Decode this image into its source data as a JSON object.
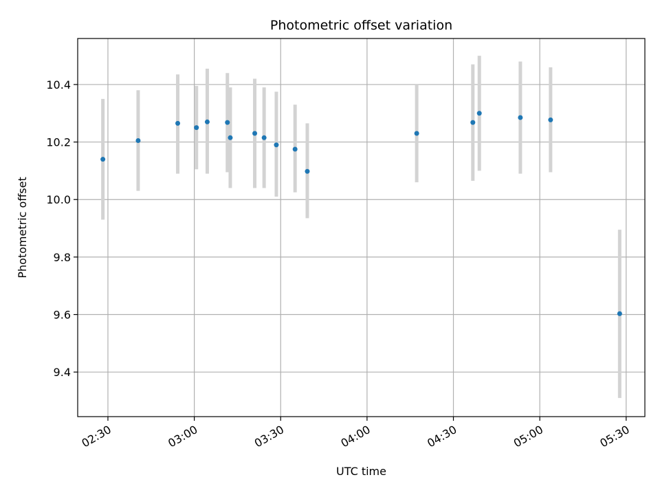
{
  "chart_data": {
    "type": "scatter",
    "title": "Photometric offset variation",
    "xlabel": "UTC time",
    "ylabel": "Photometric offset",
    "x_ticks": [
      "02:30",
      "03:00",
      "03:30",
      "04:00",
      "04:30",
      "05:00",
      "05:30"
    ],
    "y_ticks": [
      "9.4",
      "9.6",
      "9.8",
      "10.0",
      "10.2",
      "10.4"
    ],
    "xlim": [
      "02:19:30",
      "05:36:30"
    ],
    "ylim": [
      9.245,
      10.56
    ],
    "grid": true,
    "legend": "none",
    "colors": {
      "point": "#1f77b4",
      "errorbar": "#d3d3d3",
      "grid": "#b0b0b0"
    },
    "series": [
      {
        "points": [
          {
            "x": "02:28:15",
            "y": 10.14,
            "yerr_low": 9.93,
            "yerr_high": 10.35
          },
          {
            "x": "02:40:30",
            "y": 10.205,
            "yerr_low": 10.03,
            "yerr_high": 10.38
          },
          {
            "x": "02:54:15",
            "y": 10.265,
            "yerr_low": 10.09,
            "yerr_high": 10.435
          },
          {
            "x": "03:00:45",
            "y": 10.25,
            "yerr_low": 10.105,
            "yerr_high": 10.395
          },
          {
            "x": "03:04:30",
            "y": 10.27,
            "yerr_low": 10.09,
            "yerr_high": 10.455
          },
          {
            "x": "03:11:30",
            "y": 10.268,
            "yerr_low": 10.095,
            "yerr_high": 10.44
          },
          {
            "x": "03:12:30",
            "y": 10.215,
            "yerr_low": 10.04,
            "yerr_high": 10.39
          },
          {
            "x": "03:21:00",
            "y": 10.23,
            "yerr_low": 10.04,
            "yerr_high": 10.42
          },
          {
            "x": "03:24:15",
            "y": 10.215,
            "yerr_low": 10.04,
            "yerr_high": 10.39
          },
          {
            "x": "03:28:30",
            "y": 10.19,
            "yerr_low": 10.01,
            "yerr_high": 10.375
          },
          {
            "x": "03:35:00",
            "y": 10.175,
            "yerr_low": 10.025,
            "yerr_high": 10.33
          },
          {
            "x": "03:39:15",
            "y": 10.098,
            "yerr_low": 9.935,
            "yerr_high": 10.265
          },
          {
            "x": "04:17:15",
            "y": 10.23,
            "yerr_low": 10.06,
            "yerr_high": 10.4
          },
          {
            "x": "04:36:45",
            "y": 10.268,
            "yerr_low": 10.065,
            "yerr_high": 10.47
          },
          {
            "x": "04:39:00",
            "y": 10.3,
            "yerr_low": 10.1,
            "yerr_high": 10.5
          },
          {
            "x": "04:53:15",
            "y": 10.285,
            "yerr_low": 10.09,
            "yerr_high": 10.48
          },
          {
            "x": "05:03:45",
            "y": 10.277,
            "yerr_low": 10.095,
            "yerr_high": 10.46
          },
          {
            "x": "05:27:45",
            "y": 9.603,
            "yerr_low": 9.31,
            "yerr_high": 9.895
          }
        ]
      }
    ]
  }
}
